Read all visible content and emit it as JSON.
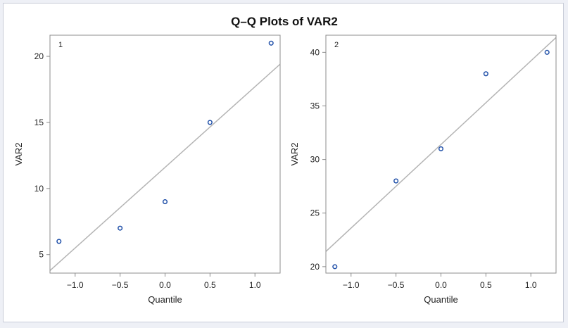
{
  "chart_data": {
    "type": "scatter",
    "title": "Q–Q Plots of VAR2",
    "panels": [
      {
        "label": "1",
        "xlabel": "Quantile",
        "ylabel": "VAR2",
        "xlim": [
          -1.28,
          1.28
        ],
        "ylim": [
          3.6,
          21.6
        ],
        "xticks": [
          -1.0,
          -0.5,
          0.0,
          0.5,
          1.0
        ],
        "xtick_labels": [
          "−1.0",
          "−0.5",
          "0.0",
          "0.5",
          "1.0"
        ],
        "yticks": [
          5,
          10,
          15,
          20
        ],
        "ytick_labels": [
          "5",
          "10",
          "15",
          "20"
        ],
        "points": {
          "x": [
            -1.18,
            -0.5,
            0.0,
            0.5,
            1.18
          ],
          "y": [
            6,
            7,
            9,
            15,
            21
          ]
        },
        "reference_line": {
          "intercept": 11.6,
          "slope": 6.1
        }
      },
      {
        "label": "2",
        "xlabel": "Quantile",
        "ylabel": "VAR2",
        "xlim": [
          -1.28,
          1.28
        ],
        "ylim": [
          19.4,
          41.6
        ],
        "xticks": [
          -1.0,
          -0.5,
          0.0,
          0.5,
          1.0
        ],
        "xtick_labels": [
          "−1.0",
          "−0.5",
          "0.0",
          "0.5",
          "1.0"
        ],
        "yticks": [
          20,
          25,
          30,
          35,
          40
        ],
        "ytick_labels": [
          "20",
          "25",
          "30",
          "35",
          "40"
        ],
        "points": {
          "x": [
            -1.18,
            -0.5,
            0.0,
            0.5,
            1.18
          ],
          "y": [
            20,
            28,
            31,
            38,
            40
          ]
        },
        "reference_line": {
          "intercept": 31.4,
          "slope": 7.8
        }
      }
    ],
    "colors": {
      "marker": "#1f4fa8",
      "reference_line": "#b4b4b4",
      "frame": "#8c8c8c"
    }
  }
}
